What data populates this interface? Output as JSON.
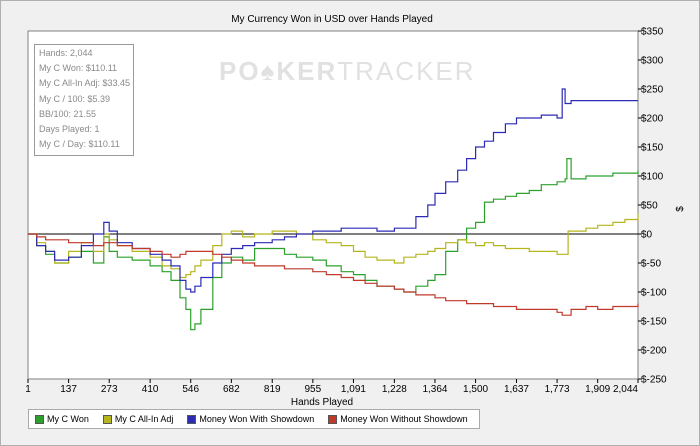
{
  "chart_data": {
    "type": "line",
    "title": "My Currency Won in USD over Hands Played",
    "xlabel": "Hands Played",
    "ylabel": "$",
    "xlim": [
      1,
      2044
    ],
    "ylim": [
      -250,
      350
    ],
    "x_ticks": [
      1,
      137,
      273,
      410,
      546,
      682,
      819,
      955,
      1091,
      1228,
      1364,
      1500,
      1637,
      1773,
      1909,
      2044
    ],
    "x_tick_labels": [
      "1",
      "137",
      "273",
      "410",
      "546",
      "682",
      "819",
      "955",
      "1,091",
      "1,228",
      "1,364",
      "1,500",
      "1,637",
      "1,773",
      "1,909",
      "2,044"
    ],
    "y_ticks": [
      -250,
      -200,
      -150,
      -100,
      -50,
      0,
      50,
      100,
      150,
      200,
      250,
      300,
      350
    ],
    "y_tick_labels": [
      "$-250",
      "$-200",
      "$-150",
      "$-100",
      "$-50",
      "$0",
      "$50",
      "$100",
      "$150",
      "$200",
      "$250",
      "$300",
      "$350"
    ],
    "grid": false,
    "legend_position": "bottom",
    "series": [
      {
        "name": "My C Won",
        "color": "#2ca02c",
        "x": [
          1,
          30,
          60,
          90,
          137,
          180,
          220,
          255,
          273,
          300,
          350,
          410,
          450,
          480,
          510,
          530,
          546,
          560,
          580,
          620,
          650,
          682,
          720,
          760,
          819,
          860,
          900,
          955,
          1000,
          1050,
          1091,
          1130,
          1170,
          1228,
          1260,
          1300,
          1340,
          1364,
          1400,
          1440,
          1470,
          1500,
          1530,
          1560,
          1600,
          1637,
          1680,
          1720,
          1773,
          1800,
          1806,
          1820,
          1870,
          1909,
          1960,
          2000,
          2044
        ],
        "y": [
          0,
          -20,
          -35,
          -50,
          -40,
          -30,
          -50,
          -5,
          -30,
          -40,
          -45,
          -55,
          -65,
          -80,
          -110,
          -130,
          -165,
          -155,
          -130,
          -75,
          -50,
          -40,
          -45,
          -25,
          -25,
          -35,
          -40,
          -45,
          -55,
          -65,
          -70,
          -80,
          -90,
          -95,
          -100,
          -90,
          -80,
          -70,
          -30,
          -10,
          10,
          20,
          55,
          60,
          65,
          70,
          75,
          85,
          90,
          95,
          130,
          95,
          100,
          100,
          105,
          105,
          110
        ]
      },
      {
        "name": "My C All-In Adj",
        "color": "#b5b51e",
        "x": [
          1,
          30,
          60,
          90,
          137,
          180,
          220,
          255,
          273,
          300,
          350,
          410,
          450,
          480,
          510,
          530,
          546,
          560,
          580,
          620,
          650,
          682,
          720,
          760,
          819,
          860,
          900,
          955,
          1000,
          1050,
          1091,
          1130,
          1170,
          1228,
          1260,
          1300,
          1340,
          1364,
          1400,
          1440,
          1470,
          1500,
          1530,
          1560,
          1600,
          1637,
          1680,
          1720,
          1773,
          1790,
          1810,
          1870,
          1909,
          1960,
          2000,
          2044
        ],
        "y": [
          0,
          -15,
          -30,
          -50,
          -30,
          -15,
          -30,
          0,
          -10,
          -20,
          -30,
          -40,
          -55,
          -60,
          -75,
          -70,
          -65,
          -55,
          -45,
          -20,
          0,
          5,
          -5,
          0,
          5,
          5,
          0,
          -10,
          -15,
          -20,
          -30,
          -40,
          -45,
          -50,
          -40,
          -35,
          -30,
          -25,
          -15,
          -10,
          -15,
          -20,
          -15,
          -20,
          -25,
          -25,
          -30,
          -30,
          -35,
          -35,
          5,
          10,
          15,
          20,
          25,
          35
        ]
      },
      {
        "name": "Money Won With Showdown",
        "color": "#2b2bb5",
        "x": [
          1,
          30,
          60,
          90,
          137,
          180,
          220,
          255,
          273,
          300,
          350,
          410,
          450,
          480,
          510,
          530,
          546,
          560,
          580,
          620,
          650,
          682,
          720,
          760,
          819,
          860,
          900,
          955,
          1000,
          1050,
          1091,
          1130,
          1170,
          1228,
          1260,
          1300,
          1340,
          1364,
          1400,
          1440,
          1470,
          1500,
          1530,
          1560,
          1600,
          1637,
          1680,
          1720,
          1773,
          1790,
          1800,
          1820,
          1870,
          1909,
          1960,
          2000,
          2044
        ],
        "y": [
          0,
          -20,
          -30,
          -45,
          -40,
          -20,
          0,
          20,
          5,
          -15,
          -25,
          -35,
          -45,
          -55,
          -80,
          -95,
          -100,
          -90,
          -75,
          -50,
          -35,
          -25,
          -20,
          -15,
          -10,
          -5,
          0,
          5,
          5,
          10,
          10,
          10,
          5,
          10,
          10,
          30,
          50,
          70,
          90,
          110,
          130,
          150,
          160,
          175,
          190,
          200,
          200,
          205,
          200,
          250,
          225,
          230,
          230,
          230,
          230,
          230,
          230
        ]
      },
      {
        "name": "Money Won Without Showdown",
        "color": "#c0392b",
        "x": [
          1,
          30,
          60,
          90,
          137,
          180,
          220,
          255,
          273,
          300,
          350,
          410,
          450,
          480,
          510,
          530,
          546,
          560,
          580,
          620,
          650,
          682,
          720,
          760,
          819,
          860,
          900,
          955,
          1000,
          1050,
          1091,
          1130,
          1170,
          1228,
          1260,
          1300,
          1340,
          1364,
          1400,
          1440,
          1470,
          1500,
          1530,
          1560,
          1600,
          1637,
          1680,
          1720,
          1773,
          1790,
          1820,
          1870,
          1909,
          1960,
          2000,
          2044
        ],
        "y": [
          0,
          -5,
          -10,
          -10,
          -15,
          -15,
          -20,
          -15,
          -15,
          -20,
          -25,
          -30,
          -35,
          -40,
          -35,
          -30,
          -30,
          -30,
          -30,
          -35,
          -40,
          -45,
          -50,
          -55,
          -55,
          -60,
          -60,
          -65,
          -70,
          -75,
          -80,
          -85,
          -90,
          -95,
          -100,
          -105,
          -105,
          -110,
          -115,
          -115,
          -120,
          -120,
          -120,
          -125,
          -125,
          -130,
          -130,
          -130,
          -135,
          -140,
          -130,
          -125,
          -130,
          -125,
          -125,
          -120
        ]
      }
    ]
  },
  "stats": {
    "hands": "Hands: 2,044",
    "won": "My C Won: $110.11",
    "allin_adj": "My C All-In Adj: $33.45",
    "per100": "My C / 100: $5.39",
    "bb100": "BB/100: 21.55",
    "days": "Days Played: 1",
    "per_day": "My C / Day: $110.11"
  },
  "watermark": {
    "logo_text": "POKERTRACKER"
  }
}
